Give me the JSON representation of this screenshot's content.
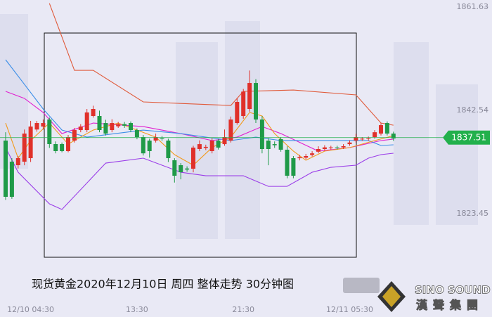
{
  "chart_data": {
    "type": "candlestick",
    "caption": "现货黄金2020年12月10日 周四 整体走势  30分钟图",
    "categories": [
      null,
      null,
      null,
      null,
      "12/10 04:30",
      null,
      null,
      null,
      null,
      null,
      null,
      null,
      null,
      null,
      null,
      null,
      null,
      null,
      null,
      null,
      null,
      "13:30",
      null,
      null,
      null,
      null,
      null,
      null,
      null,
      null,
      null,
      null,
      null,
      null,
      null,
      null,
      null,
      null,
      "21:30",
      null,
      null,
      null,
      null,
      null,
      null,
      null,
      null,
      null,
      null,
      null,
      null,
      null,
      null,
      null,
      null,
      "12/11 05:30",
      null,
      null,
      null,
      null,
      null,
      null,
      null
    ],
    "open": [
      1836.96,
      1833.06,
      1832.41,
      1833.06,
      1833.71,
      1839.0,
      1839.55,
      1840.85,
      1836.31,
      1836.31,
      1835.01,
      1836.96,
      1838.9,
      1838.9,
      1841.5,
      1841.5,
      1840.2,
      1838.9,
      1839.6,
      1840.0,
      1840.2,
      1838.9,
      1837.6,
      1836.96,
      1836.96,
      1837.4,
      1836.96,
      1833.32,
      1832.41,
      1831.8,
      1831.76,
      1835.4,
      1835.6,
      1835.01,
      1836.96,
      1836.3,
      1836.96,
      1840.2,
      1841.5,
      1842.8,
      1847.6,
      1840.85,
      1836.96,
      1836.3,
      1837.22,
      1835.27,
      1833.71,
      1833.7,
      1833.8,
      1834.3,
      1834.9,
      1835.4,
      1835.6,
      1835.7,
      1835.7,
      1836.3,
      1836.96,
      1837.2,
      1837.3,
      1837.6,
      1838.25,
      1840.2,
      1838.25
    ],
    "high": [
      1838.5,
      1833.7,
      1834.1,
      1839.0,
      1840.6,
      1840.6,
      1840.85,
      1841.2,
      1836.8,
      1836.6,
      1838.0,
      1839.3,
      1840.0,
      1842.8,
      1843.4,
      1842.5,
      1840.8,
      1840.9,
      1840.4,
      1840.4,
      1840.5,
      1839.2,
      1838.0,
      1837.3,
      1838.25,
      1837.8,
      1837.3,
      1833.7,
      1832.8,
      1832.2,
      1836.0,
      1837.0,
      1836.2,
      1837.4,
      1837.3,
      1839.0,
      1841.4,
      1844.8,
      1846.5,
      1849.9,
      1848.3,
      1841.5,
      1837.4,
      1836.8,
      1837.6,
      1835.9,
      1834.1,
      1834.3,
      1834.5,
      1835.0,
      1835.9,
      1836.1,
      1836.0,
      1836.0,
      1836.3,
      1837.0,
      1838.2,
      1837.6,
      1837.7,
      1838.9,
      1840.2,
      1840.5,
      1838.6
    ],
    "low": [
      1826.0,
      1826.2,
      1831.8,
      1832.4,
      1833.0,
      1838.6,
      1839.0,
      1835.6,
      1834.6,
      1834.8,
      1834.8,
      1836.6,
      1838.5,
      1838.5,
      1841.2,
      1838.5,
      1837.9,
      1838.5,
      1839.3,
      1839.3,
      1838.5,
      1837.2,
      1834.2,
      1833.8,
      1836.6,
      1836.9,
      1833.0,
      1829.2,
      1829.8,
      1831.2,
      1831.1,
      1835.0,
      1835.2,
      1834.6,
      1835.3,
      1836.0,
      1836.6,
      1839.9,
      1841.0,
      1842.3,
      1840.2,
      1834.6,
      1832.4,
      1835.6,
      1834.9,
      1830.0,
      1830.0,
      1833.3,
      1833.5,
      1834.0,
      1834.6,
      1835.1,
      1835.3,
      1835.3,
      1835.4,
      1836.0,
      1836.6,
      1836.9,
      1836.9,
      1837.3,
      1837.9,
      1837.9,
      1836.9
    ],
    "close": [
      1826.57,
      1826.57,
      1833.71,
      1838.25,
      1839.55,
      1840.2,
      1840.2,
      1836.31,
      1835.01,
      1835.01,
      1837.6,
      1838.9,
      1839.55,
      1842.15,
      1842.8,
      1838.9,
      1838.25,
      1840.2,
      1840.0,
      1839.7,
      1838.9,
      1837.6,
      1834.6,
      1835.01,
      1837.6,
      1837.3,
      1833.71,
      1830.46,
      1831.11,
      1831.6,
      1835.66,
      1836.3,
      1835.8,
      1836.96,
      1835.66,
      1837.6,
      1840.85,
      1844.1,
      1846.0,
      1847.6,
      1840.85,
      1835.4,
      1835.4,
      1836.1,
      1835.27,
      1830.46,
      1830.46,
      1833.9,
      1834.1,
      1834.6,
      1835.4,
      1835.7,
      1835.7,
      1835.66,
      1835.92,
      1836.6,
      1837.6,
      1837.3,
      1837.4,
      1838.5,
      1839.81,
      1838.25,
      1837.35
    ],
    "up_color": "#e0302a",
    "down_color": "#1f9a48",
    "series": [
      {
        "color": "#e05a3a",
        "x": [
          7,
          11,
          14,
          22,
          36,
          38,
          46,
          56,
          60,
          62
        ],
        "values": [
          1862.3,
          1849.94,
          1849.94,
          1844.1,
          1843.45,
          1846.05,
          1846.3,
          1845.4,
          1840.2,
          1839.8
        ]
      },
      {
        "color": "#9a3ce8",
        "x": [
          0,
          2,
          7,
          9,
          16,
          22,
          28,
          32,
          38,
          42,
          45,
          49,
          52,
          56,
          58,
          60,
          62
        ],
        "values": [
          1835.66,
          1831.11,
          1825.27,
          1824.23,
          1832.8,
          1833.71,
          1831.11,
          1830.46,
          1830.46,
          1828.5,
          1828.5,
          1831.11,
          1832.02,
          1832.41,
          1833.71,
          1834.36,
          1834.62
        ]
      },
      {
        "color": "#e020d0",
        "x": [
          0,
          3,
          6,
          9,
          14,
          22,
          28,
          33,
          37,
          41,
          44,
          50,
          55,
          60,
          62
        ],
        "values": [
          1846.05,
          1844.75,
          1842.15,
          1838.25,
          1840.2,
          1839.55,
          1838.25,
          1836.96,
          1837.6,
          1839.55,
          1838.25,
          1835.01,
          1835.66,
          1836.96,
          1837.22
        ]
      },
      {
        "color": "#3b8ee8",
        "x": [
          0,
          3,
          6,
          9,
          13,
          22,
          28,
          36,
          40,
          44,
          51,
          58,
          60,
          62
        ],
        "values": [
          1851.89,
          1847.35,
          1842.8,
          1838.9,
          1837.6,
          1838.9,
          1838.25,
          1836.96,
          1837.6,
          1836.96,
          1836.96,
          1836.96,
          1836.05,
          1836.18
        ]
      },
      {
        "color": "#f29a1c",
        "x": [
          0,
          2,
          4,
          7,
          10,
          14,
          18,
          21,
          24,
          27,
          30,
          33,
          36,
          39,
          41,
          43,
          46,
          48,
          51,
          55,
          59,
          62
        ],
        "values": [
          1840.2,
          1833.71,
          1836.96,
          1840.2,
          1836.31,
          1838.9,
          1840.2,
          1838.9,
          1837.6,
          1834.36,
          1832.41,
          1835.66,
          1837.6,
          1842.15,
          1841.5,
          1838.25,
          1835.01,
          1833.32,
          1835.01,
          1835.66,
          1836.96,
          1837.86
        ]
      }
    ],
    "last_price": 1837.51,
    "last_price_color": "#22b04c",
    "ylim": [
      1807.09,
      1862.93
    ],
    "yticks": [
      1861.63,
      1842.54,
      1823.45
    ]
  },
  "logo": {
    "name": "SINO SOUND",
    "subtitle": "漢聲集團"
  }
}
